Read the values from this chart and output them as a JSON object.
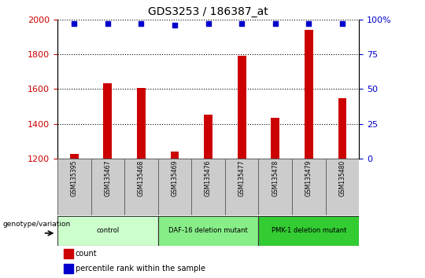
{
  "title": "GDS3253 / 186387_at",
  "samples": [
    "GSM135395",
    "GSM135467",
    "GSM135468",
    "GSM135469",
    "GSM135476",
    "GSM135477",
    "GSM135478",
    "GSM135479",
    "GSM135480"
  ],
  "counts": [
    1225,
    1635,
    1605,
    1240,
    1450,
    1790,
    1435,
    1940,
    1545
  ],
  "percentiles": [
    97,
    97,
    97,
    96,
    97,
    97,
    97,
    97,
    97
  ],
  "ylim_left": [
    1200,
    2000
  ],
  "ylim_right": [
    0,
    100
  ],
  "yticks_left": [
    1200,
    1400,
    1600,
    1800,
    2000
  ],
  "yticks_right": [
    0,
    25,
    50,
    75,
    100
  ],
  "bar_color": "#cc0000",
  "dot_color": "#0000cc",
  "groups": [
    {
      "label": "control",
      "start": 0,
      "end": 3,
      "color": "#ccffcc"
    },
    {
      "label": "DAF-16 deletion mutant",
      "start": 3,
      "end": 6,
      "color": "#88ee88"
    },
    {
      "label": "PMK-1 deletion mutant",
      "start": 6,
      "end": 9,
      "color": "#33cc33"
    }
  ],
  "genotype_label": "genotype/variation",
  "legend_count_label": "count",
  "legend_percentile_label": "percentile rank within the sample",
  "tick_label_color": "#cc0000",
  "right_axis_color": "#0000cc",
  "grid_color": "#000000",
  "sample_bg_color": "#cccccc",
  "bar_width": 0.25
}
